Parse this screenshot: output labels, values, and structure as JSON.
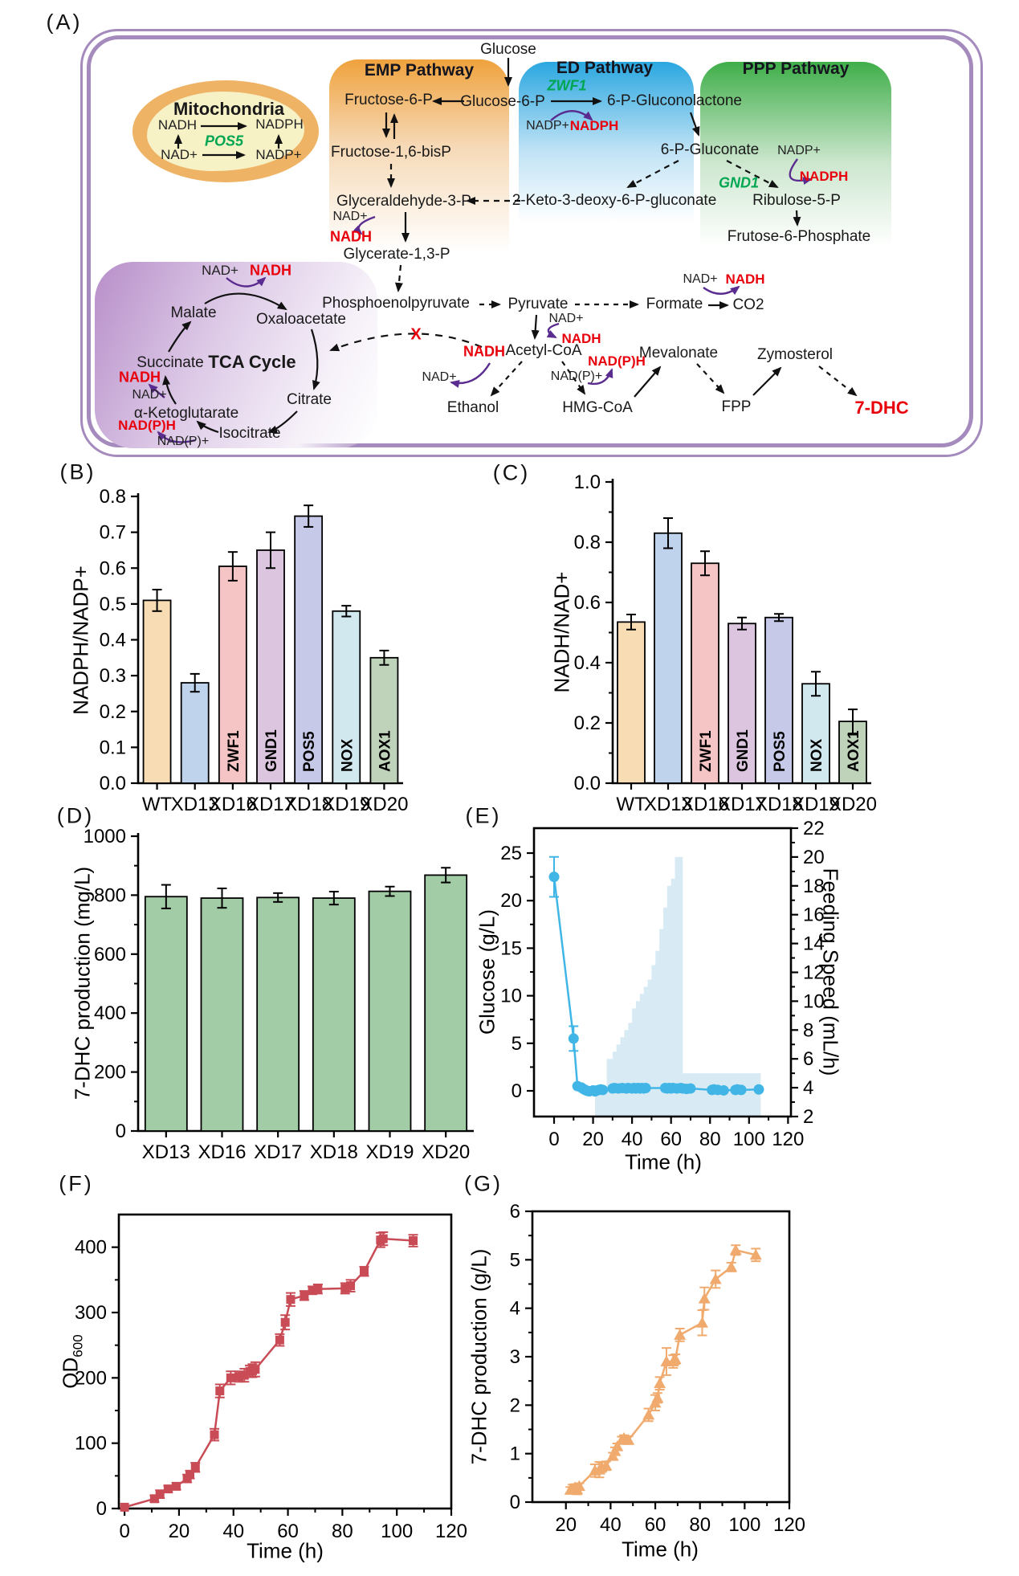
{
  "figure": {
    "panel_labels": {
      "a": "(A)",
      "b": "(B)",
      "c": "(C)",
      "d": "(D)",
      "e": "(E)",
      "f": "(F)",
      "g": "(G)"
    }
  },
  "diagram": {
    "headers": {
      "mitochondria": "Mitochondria",
      "emp": "EMP Pathway",
      "ed": "ED Pathway",
      "ppp": "PPP Pathway",
      "tca": "TCA Cycle"
    },
    "genes": {
      "pos5": "POS5",
      "zwf1": "ZWF1",
      "gnd1": "GND1"
    },
    "cofactors": {
      "nadh": "NADH",
      "nad": "NAD+",
      "nadph": "NADPH",
      "nadp": "NADP+",
      "nadph_p": "NAD(P)H",
      "nadp_p": "NAD(P)+"
    },
    "blocked_marker": "X",
    "metabolites": {
      "glucose": "Glucose",
      "glucose6p": "Glucose-6-P",
      "fructose6p": "Fructose-6-P",
      "fructose16bp": "Fructose-1,6-bisP",
      "g3p": "Glyceraldehyde-3-P",
      "glycerate13p": "Glycerate-1,3-P",
      "pep": "Phosphoenolpyruvate",
      "pyruvate": "Pyruvate",
      "formate": "Formate",
      "co2": "CO2",
      "acetylcoa": "Acetyl-CoA",
      "ethanol": "Ethanol",
      "hmgcoa": "HMG-CoA",
      "mevalonate": "Mevalonate",
      "fpp": "FPP",
      "zymosterol": "Zymosterol",
      "dhc7": "7-DHC",
      "gluconolactone6p": "6-P-Gluconolactone",
      "gluconate6p": "6-P-Gluconate",
      "kdpg": "2-Keto-3-deoxy-6-P-gluconate",
      "ribulose5p": "Ribulose-5-P",
      "frutose6p": "Frutose-6-Phosphate",
      "malate": "Malate",
      "oxaloacetate": "Oxaloacetate",
      "succinate": "Succinate",
      "citrate": "Citrate",
      "isocitrate": "Isocitrate",
      "akg": "α-Ketoglutarate"
    }
  },
  "chart_data": {
    "B": {
      "type": "bar",
      "ylabel": "NADPH/NADP+",
      "ylim": [
        0,
        0.8
      ],
      "ymax": 0.8,
      "dec": 1,
      "yticks": [
        0,
        0.1,
        0.2,
        0.3,
        0.4,
        0.5,
        0.6,
        0.7,
        0.8
      ],
      "categories": [
        "WT",
        "XD13",
        "XD16",
        "XD17",
        "XD18",
        "XD19",
        "XD20"
      ],
      "values": [
        0.51,
        0.28,
        0.605,
        0.65,
        0.745,
        0.48,
        0.35
      ],
      "errors": [
        0.03,
        0.025,
        0.04,
        0.05,
        0.03,
        0.015,
        0.02
      ],
      "bar_labels": [
        "",
        "",
        "ZWF1",
        "GND1",
        "POS5",
        "NOX",
        "AOX1"
      ],
      "colors": [
        "#f8dcb4",
        "#bfd4ec",
        "#f4c5c4",
        "#dcc5df",
        "#c6c9e7",
        "#d1e8ef",
        "#bed3ba"
      ]
    },
    "C": {
      "type": "bar",
      "ylabel": "NADH/NAD+",
      "ylim": [
        0,
        1.0
      ],
      "ymax": 1.0,
      "dec": 1,
      "yticks": [
        0,
        0.2,
        0.4,
        0.6,
        0.8,
        1.0
      ],
      "yminor": [
        0.1,
        0.3,
        0.5,
        0.7,
        0.9
      ],
      "categories": [
        "WT",
        "XD13",
        "XD16",
        "XD17",
        "XD18",
        "XD19",
        "XD20"
      ],
      "values": [
        0.535,
        0.83,
        0.73,
        0.53,
        0.55,
        0.33,
        0.205
      ],
      "errors": [
        0.025,
        0.05,
        0.04,
        0.02,
        0.012,
        0.04,
        0.04
      ],
      "bar_labels": [
        "",
        "",
        "ZWF1",
        "GND1",
        "POS5",
        "NOX",
        "AOX1"
      ],
      "colors": [
        "#f8dcb4",
        "#bfd4ec",
        "#f4c5c4",
        "#dcc5df",
        "#c6c9e7",
        "#d1e8ef",
        "#bed3ba"
      ]
    },
    "D": {
      "type": "bar",
      "ylabel": "7-DHC production (mg/L)",
      "ylim": [
        0,
        1000
      ],
      "ymax": 1000,
      "dec": 0,
      "yticks": [
        0,
        200,
        400,
        600,
        800,
        1000
      ],
      "yminor": [
        100,
        300,
        500,
        700,
        900
      ],
      "categories": [
        "XD13",
        "XD16",
        "XD17",
        "XD18",
        "XD19",
        "XD20"
      ],
      "values": [
        795,
        790,
        792,
        790,
        813,
        868
      ],
      "errors": [
        40,
        33,
        15,
        22,
        16,
        25
      ],
      "bar_labels": [
        "",
        "",
        "",
        "",
        "",
        ""
      ],
      "colors": [
        "#a2cca5",
        "#a2cca5",
        "#a2cca5",
        "#a2cca5",
        "#a2cca5",
        "#a2cca5"
      ]
    },
    "E": {
      "type": "line",
      "xlabel": "Time (h)",
      "ylabel_left": "Glucose (g/L)",
      "ylabel_right": "Feeding Speed (mL/h)",
      "xlim": [
        0,
        120
      ],
      "ylim_left": [
        0,
        25
      ],
      "ylim_right": [
        2,
        22
      ],
      "xticks": [
        0,
        20,
        40,
        60,
        80,
        100,
        120
      ],
      "yticks_left": [
        0,
        5,
        10,
        15,
        20,
        25
      ],
      "yticks_right": [
        2,
        4,
        6,
        8,
        10,
        12,
        14,
        16,
        18,
        20,
        22
      ],
      "line_color": "#41b6e6",
      "area_color": "#d8ebf5",
      "glucose_points": [
        [
          0,
          22.5,
          2.1
        ],
        [
          10,
          5.5,
          1.3
        ],
        [
          12,
          0.5,
          0
        ],
        [
          14,
          0.35,
          0
        ],
        [
          15,
          0.2,
          0
        ],
        [
          16,
          0.1,
          0
        ],
        [
          17,
          0,
          0
        ],
        [
          18,
          -0.05,
          0
        ],
        [
          20,
          0.05,
          0
        ],
        [
          21,
          -0.05,
          0
        ],
        [
          22,
          0.05,
          0
        ],
        [
          23,
          0.1,
          0
        ],
        [
          24,
          0.15,
          0
        ],
        [
          25,
          0.1,
          0
        ],
        [
          30,
          0.25,
          0
        ],
        [
          31,
          0.3,
          0
        ],
        [
          33,
          0.25,
          0
        ],
        [
          35,
          0.3,
          0
        ],
        [
          37,
          0.25,
          0
        ],
        [
          38,
          0.3,
          0
        ],
        [
          40,
          0.25,
          0
        ],
        [
          41,
          0.3,
          0
        ],
        [
          42,
          0.25,
          0
        ],
        [
          43,
          0.3,
          0
        ],
        [
          44,
          0.25,
          0
        ],
        [
          45,
          0.3,
          0
        ],
        [
          46,
          0.25,
          0
        ],
        [
          47,
          0.3,
          0
        ],
        [
          57,
          0.3,
          0
        ],
        [
          58,
          0.25,
          0
        ],
        [
          59,
          0.3,
          0
        ],
        [
          60,
          0.25,
          0
        ],
        [
          61,
          0.3,
          0
        ],
        [
          63,
          0.25,
          0
        ],
        [
          65,
          0.3,
          0
        ],
        [
          66,
          0.25,
          0
        ],
        [
          68,
          0.2,
          0
        ],
        [
          70,
          0.25,
          0
        ],
        [
          81,
          0.1,
          0
        ],
        [
          82,
          0.15,
          0
        ],
        [
          84,
          0.1,
          0
        ],
        [
          87,
          0.05,
          0
        ],
        [
          93,
          0.1,
          0
        ],
        [
          94,
          0.15,
          0
        ],
        [
          96,
          0.1,
          0
        ],
        [
          105,
          0.15,
          0
        ]
      ],
      "feeding_steps": [
        [
          21,
          4
        ],
        [
          27,
          6
        ],
        [
          30,
          6.5
        ],
        [
          32,
          7
        ],
        [
          34,
          7.5
        ],
        [
          36,
          8
        ],
        [
          38,
          8.5
        ],
        [
          40,
          9.5
        ],
        [
          42,
          10
        ],
        [
          44,
          10.5
        ],
        [
          46,
          11
        ],
        [
          48,
          11.5
        ],
        [
          50,
          12.5
        ],
        [
          52,
          13.5
        ],
        [
          54,
          15
        ],
        [
          56,
          16.5
        ],
        [
          58,
          18
        ],
        [
          60,
          18.5
        ],
        [
          62,
          20
        ],
        [
          66,
          5
        ]
      ],
      "feeding_end": 106
    },
    "F": {
      "type": "line",
      "xlabel": "Time (h)",
      "ylabel_main": "OD",
      "ylabel_sub": "600",
      "xlim": [
        0,
        120
      ],
      "ylim": [
        0,
        450
      ],
      "marker": "square",
      "color": "#c84b55",
      "xticks": [
        0,
        20,
        40,
        60,
        80,
        100,
        120
      ],
      "yticks": [
        0,
        100,
        200,
        300,
        400
      ],
      "points": [
        [
          0,
          2,
          0
        ],
        [
          11,
          15,
          5
        ],
        [
          13,
          22,
          6
        ],
        [
          16,
          30,
          5
        ],
        [
          19,
          34,
          5
        ],
        [
          23,
          46,
          6
        ],
        [
          24,
          52,
          6
        ],
        [
          26,
          63,
          7
        ],
        [
          33,
          113,
          9
        ],
        [
          35,
          180,
          10
        ],
        [
          39,
          200,
          10
        ],
        [
          42,
          202,
          8
        ],
        [
          44,
          204,
          10
        ],
        [
          46,
          210,
          9
        ],
        [
          47,
          211,
          10
        ],
        [
          48,
          213,
          11
        ],
        [
          57,
          258,
          9
        ],
        [
          59,
          285,
          11
        ],
        [
          61,
          320,
          10
        ],
        [
          66,
          326,
          7
        ],
        [
          69,
          334,
          6
        ],
        [
          71,
          336,
          7
        ],
        [
          81,
          337,
          8
        ],
        [
          83,
          341,
          9
        ],
        [
          88,
          363,
          7
        ],
        [
          94,
          411,
          11
        ],
        [
          95,
          413,
          10
        ],
        [
          106,
          410,
          9
        ]
      ]
    },
    "G": {
      "type": "line",
      "xlabel": "Time (h)",
      "ylabel": "7-DHC production (g/L)",
      "xlim": [
        0,
        120
      ],
      "ylim": [
        0,
        6
      ],
      "marker": "triangle",
      "color": "#f0aa6d",
      "xticks": [
        20,
        40,
        60,
        80,
        100,
        120
      ],
      "yticks": [
        0,
        1,
        2,
        3,
        4,
        5,
        6
      ],
      "points": [
        [
          22,
          0.25,
          0.06
        ],
        [
          23,
          0.27,
          0.09
        ],
        [
          24,
          0.3,
          0.07
        ],
        [
          25,
          0.26,
          0.1
        ],
        [
          26,
          0.33,
          0.06
        ],
        [
          33,
          0.65,
          0.13
        ],
        [
          35,
          0.67,
          0.16
        ],
        [
          36,
          0.72,
          0.1
        ],
        [
          38,
          0.75,
          0.09
        ],
        [
          41,
          0.95,
          0.07
        ],
        [
          42,
          1.05,
          0.08
        ],
        [
          43,
          1.15,
          0.06
        ],
        [
          45,
          1.28,
          0.07
        ],
        [
          46,
          1.32,
          0.06
        ],
        [
          48,
          1.28,
          0.08
        ],
        [
          57,
          1.8,
          0.13
        ],
        [
          60,
          2.05,
          0.16
        ],
        [
          61,
          2.15,
          0.1
        ],
        [
          62,
          2.45,
          0.13
        ],
        [
          65,
          2.9,
          0.28
        ],
        [
          68,
          2.9,
          0.13
        ],
        [
          69,
          2.95,
          0.1
        ],
        [
          71,
          3.45,
          0.13
        ],
        [
          81,
          3.7,
          0.26
        ],
        [
          82,
          4.2,
          0.23
        ],
        [
          87,
          4.6,
          0.18
        ],
        [
          94,
          4.85,
          0.09
        ],
        [
          96,
          5.2,
          0.1
        ],
        [
          105,
          5.1,
          0.13
        ]
      ]
    }
  }
}
